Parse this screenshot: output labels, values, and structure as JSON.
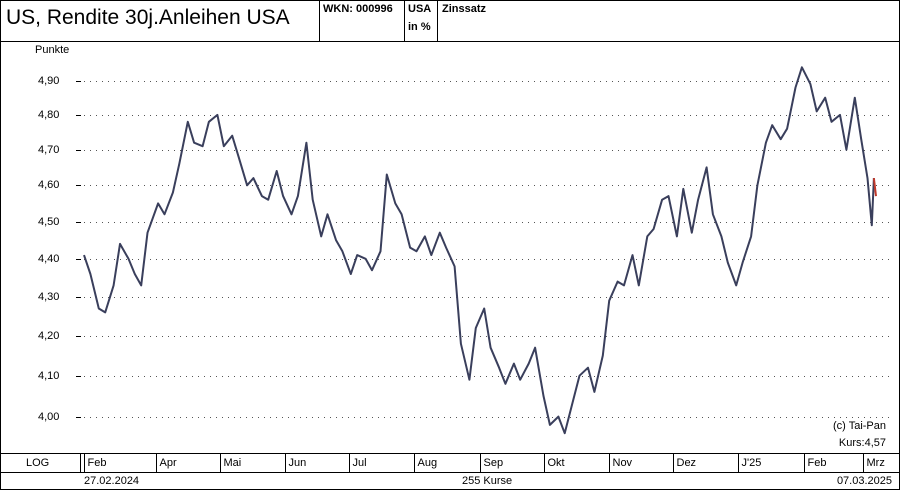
{
  "header": {
    "title": "US, Rendite 30j.Anleihen USA",
    "wkn": "WKN: 000996",
    "country": "USA",
    "unit": "in %",
    "category": "Zinssatz"
  },
  "footer": {
    "scale_mode": "LOG",
    "start_date": "27.02.2024",
    "count": "255 Kurse",
    "end_date": "07.03.2025"
  },
  "annotations": {
    "copyright": "(c) Tai-Pan",
    "last_price": "Kurs:4,57"
  },
  "colors": {
    "line": "#3a3f5c",
    "last_segment": "#c0392b",
    "grid_dots": "#555555"
  },
  "chart_data": {
    "type": "line",
    "ylabel": "Punkte",
    "y_tick_labels": [
      "4,00",
      "4,10",
      "4,20",
      "4,30",
      "4,40",
      "4,50",
      "4,60",
      "4,70",
      "4,80",
      "4,90"
    ],
    "y_ticks": [
      4.0,
      4.1,
      4.2,
      4.3,
      4.4,
      4.5,
      4.6,
      4.7,
      4.8,
      4.9
    ],
    "ylim": [
      3.92,
      5.01
    ],
    "scale": "log",
    "grid": true,
    "x_tick_labels": [
      "Feb",
      "Apr",
      "Mai",
      "Jun",
      "Jul",
      "Aug",
      "Sep",
      "Okt",
      "Nov",
      "Dez",
      "J'25",
      "Feb",
      "Mrz"
    ],
    "x_ticks": [
      "2024-02-27",
      "2024-04-01",
      "2024-05-01",
      "2024-06-01",
      "2024-07-01",
      "2024-08-01",
      "2024-09-01",
      "2024-10-01",
      "2024-11-01",
      "2024-12-01",
      "2025-01-01",
      "2025-02-01",
      "2025-03-01"
    ],
    "x_range": [
      "2024-02-27",
      "2025-03-07"
    ],
    "series": [
      {
        "values": [
          [
            "2024-02-27",
            4.41
          ],
          [
            "2024-03-01",
            4.36
          ],
          [
            "2024-03-05",
            4.27
          ],
          [
            "2024-03-08",
            4.26
          ],
          [
            "2024-03-12",
            4.33
          ],
          [
            "2024-03-15",
            4.44
          ],
          [
            "2024-03-19",
            4.4
          ],
          [
            "2024-03-22",
            4.36
          ],
          [
            "2024-03-25",
            4.33
          ],
          [
            "2024-03-28",
            4.47
          ],
          [
            "2024-04-02",
            4.55
          ],
          [
            "2024-04-05",
            4.52
          ],
          [
            "2024-04-09",
            4.58
          ],
          [
            "2024-04-12",
            4.66
          ],
          [
            "2024-04-16",
            4.78
          ],
          [
            "2024-04-19",
            4.72
          ],
          [
            "2024-04-23",
            4.71
          ],
          [
            "2024-04-26",
            4.78
          ],
          [
            "2024-04-30",
            4.8
          ],
          [
            "2024-05-03",
            4.71
          ],
          [
            "2024-05-07",
            4.74
          ],
          [
            "2024-05-10",
            4.68
          ],
          [
            "2024-05-14",
            4.6
          ],
          [
            "2024-05-17",
            4.62
          ],
          [
            "2024-05-21",
            4.57
          ],
          [
            "2024-05-24",
            4.56
          ],
          [
            "2024-05-28",
            4.64
          ],
          [
            "2024-05-31",
            4.57
          ],
          [
            "2024-06-04",
            4.52
          ],
          [
            "2024-06-07",
            4.57
          ],
          [
            "2024-06-11",
            4.72
          ],
          [
            "2024-06-14",
            4.56
          ],
          [
            "2024-06-18",
            4.46
          ],
          [
            "2024-06-21",
            4.52
          ],
          [
            "2024-06-25",
            4.45
          ],
          [
            "2024-06-28",
            4.42
          ],
          [
            "2024-07-02",
            4.36
          ],
          [
            "2024-07-05",
            4.41
          ],
          [
            "2024-07-09",
            4.4
          ],
          [
            "2024-07-12",
            4.37
          ],
          [
            "2024-07-16",
            4.42
          ],
          [
            "2024-07-19",
            4.63
          ],
          [
            "2024-07-23",
            4.55
          ],
          [
            "2024-07-26",
            4.52
          ],
          [
            "2024-07-30",
            4.43
          ],
          [
            "2024-08-02",
            4.42
          ],
          [
            "2024-08-06",
            4.46
          ],
          [
            "2024-08-09",
            4.41
          ],
          [
            "2024-08-13",
            4.47
          ],
          [
            "2024-08-16",
            4.43
          ],
          [
            "2024-08-20",
            4.38
          ],
          [
            "2024-08-23",
            4.18
          ],
          [
            "2024-08-27",
            4.09
          ],
          [
            "2024-08-30",
            4.22
          ],
          [
            "2024-09-03",
            4.27
          ],
          [
            "2024-09-06",
            4.17
          ],
          [
            "2024-09-10",
            4.12
          ],
          [
            "2024-09-13",
            4.08
          ],
          [
            "2024-09-17",
            4.13
          ],
          [
            "2024-09-20",
            4.09
          ],
          [
            "2024-09-24",
            4.13
          ],
          [
            "2024-09-27",
            4.17
          ],
          [
            "2024-10-01",
            4.05
          ],
          [
            "2024-10-04",
            3.98
          ],
          [
            "2024-10-08",
            4.0
          ],
          [
            "2024-10-11",
            3.96
          ],
          [
            "2024-10-15",
            4.04
          ],
          [
            "2024-10-18",
            4.1
          ],
          [
            "2024-10-22",
            4.12
          ],
          [
            "2024-10-25",
            4.06
          ],
          [
            "2024-10-29",
            4.15
          ],
          [
            "2024-11-01",
            4.29
          ],
          [
            "2024-11-05",
            4.34
          ],
          [
            "2024-11-08",
            4.33
          ],
          [
            "2024-11-12",
            4.41
          ],
          [
            "2024-11-15",
            4.33
          ],
          [
            "2024-11-19",
            4.46
          ],
          [
            "2024-11-22",
            4.48
          ],
          [
            "2024-11-26",
            4.56
          ],
          [
            "2024-11-29",
            4.57
          ],
          [
            "2024-12-03",
            4.46
          ],
          [
            "2024-12-06",
            4.59
          ],
          [
            "2024-12-10",
            4.47
          ],
          [
            "2024-12-13",
            4.56
          ],
          [
            "2024-12-17",
            4.65
          ],
          [
            "2024-12-20",
            4.52
          ],
          [
            "2024-12-24",
            4.46
          ],
          [
            "2024-12-27",
            4.39
          ],
          [
            "2024-12-31",
            4.33
          ],
          [
            "2025-01-03",
            4.39
          ],
          [
            "2025-01-07",
            4.46
          ],
          [
            "2025-01-10",
            4.6
          ],
          [
            "2025-01-14",
            4.72
          ],
          [
            "2025-01-17",
            4.77
          ],
          [
            "2025-01-21",
            4.73
          ],
          [
            "2025-01-24",
            4.76
          ],
          [
            "2025-01-28",
            4.88
          ],
          [
            "2025-01-31",
            4.94
          ],
          [
            "2025-02-04",
            4.89
          ],
          [
            "2025-02-07",
            4.81
          ],
          [
            "2025-02-11",
            4.85
          ],
          [
            "2025-02-14",
            4.78
          ],
          [
            "2025-02-18",
            4.8
          ],
          [
            "2025-02-21",
            4.7
          ],
          [
            "2025-02-25",
            4.85
          ],
          [
            "2025-02-28",
            4.73
          ],
          [
            "2025-03-03",
            4.62
          ],
          [
            "2025-03-05",
            4.49
          ],
          [
            "2025-03-06",
            4.62
          ],
          [
            "2025-03-07",
            4.57
          ]
        ]
      }
    ]
  }
}
